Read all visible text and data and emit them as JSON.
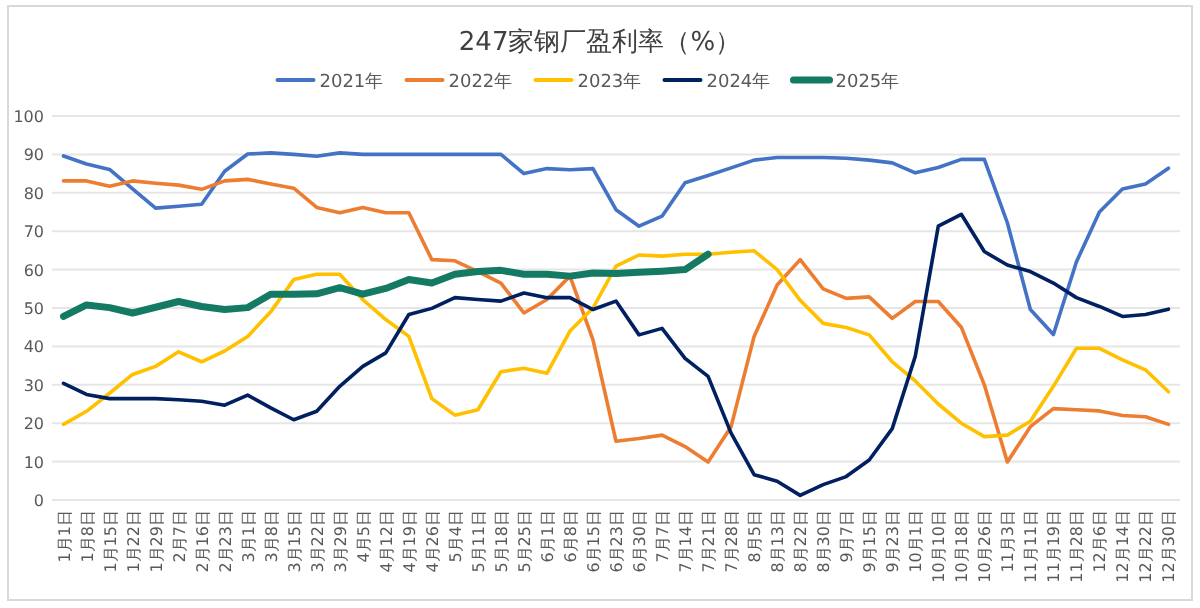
{
  "chart_data": {
    "type": "line",
    "title": "247家钢厂盈利率（%）",
    "categories": [
      "1月1日",
      "1月8日",
      "1月15日",
      "1月22日",
      "1月29日",
      "2月7日",
      "2月16日",
      "2月23日",
      "3月1日",
      "3月8日",
      "3月15日",
      "3月22日",
      "3月29日",
      "4月5日",
      "4月12日",
      "4月19日",
      "4月26日",
      "5月4日",
      "5月11日",
      "5月18日",
      "5月25日",
      "6月1日",
      "6月8日",
      "6月15日",
      "6月23日",
      "6月30日",
      "7月7日",
      "7月14日",
      "7月21日",
      "7月28日",
      "8月5日",
      "8月13日",
      "8月22日",
      "8月30日",
      "9月7日",
      "9月15日",
      "9月23日",
      "10月1日",
      "10月10日",
      "10月18日",
      "10月26日",
      "11月3日",
      "11月11日",
      "11月19日",
      "11月28日",
      "12月6日",
      "12月14日",
      "12月22日",
      "12月30日"
    ],
    "series": [
      {
        "name": "2021年",
        "color": "#4472c4",
        "values": [
          89.6,
          87.5,
          86.1,
          81,
          76,
          76.5,
          77,
          85.6,
          90.1,
          90.4,
          90,
          89.5,
          90.4,
          90,
          90,
          90,
          90,
          90,
          90,
          90,
          85,
          86.3,
          86,
          86.3,
          75.6,
          71.3,
          73.9,
          82.6,
          84.5,
          86.5,
          88.5,
          89.2,
          89.2,
          89.2,
          89,
          88.5,
          87.8,
          85.2,
          86.6,
          88.7,
          88.7,
          72.2,
          49.6,
          43.1,
          62,
          75,
          81,
          82.3,
          86.4
        ]
      },
      {
        "name": "2022年",
        "color": "#ed7d31",
        "values": [
          83.1,
          83.1,
          81.7,
          83.1,
          82.5,
          82,
          80.9,
          83.1,
          83.5,
          82.3,
          81.2,
          76.2,
          74.8,
          76.2,
          74.8,
          74.8,
          62.6,
          62.3,
          59.5,
          56.5,
          48.7,
          52.2,
          58.3,
          41.7,
          15.3,
          16,
          16.9,
          13.9,
          9.9,
          19.1,
          42.6,
          56,
          62.6,
          55,
          52.5,
          52.9,
          47.3,
          51.7,
          51.7,
          45,
          30,
          9.9,
          19.1,
          23.8,
          23.5,
          23.2,
          22,
          21.7,
          19.7
        ]
      },
      {
        "name": "2023年",
        "color": "#ffc000",
        "values": [
          19.7,
          23.1,
          27.8,
          32.7,
          34.8,
          38.6,
          36,
          38.8,
          42.6,
          49,
          57.4,
          58.8,
          58.8,
          52.2,
          47,
          42.6,
          26.4,
          22.1,
          23.5,
          33.4,
          34.3,
          33,
          44,
          50,
          60.9,
          63.8,
          63.5,
          64,
          64,
          64.5,
          64.9,
          60,
          52,
          46,
          44.9,
          43,
          36,
          31,
          25,
          20,
          16.5,
          16.9,
          20.5,
          29.6,
          39.5,
          39.5,
          36.5,
          33.9,
          28.2
        ]
      },
      {
        "name": "2024年",
        "color": "#002060",
        "values": [
          30.4,
          27.5,
          26.4,
          26.4,
          26.4,
          26.1,
          25.7,
          24.7,
          27.3,
          24,
          20.9,
          23.1,
          29.6,
          34.8,
          38.3,
          48.3,
          49.9,
          52.7,
          52.2,
          51.8,
          53.9,
          52.7,
          52.7,
          49.6,
          51.8,
          43,
          44.7,
          36.9,
          32.2,
          17.4,
          6.6,
          4.9,
          1.2,
          4,
          6.1,
          10.4,
          18.6,
          37.4,
          71.3,
          74.4,
          64.7,
          61.2,
          59.5,
          56.5,
          52.7,
          50.4,
          47.8,
          48.3,
          49.7
        ]
      },
      {
        "name": "2025年",
        "color": "#147a63",
        "values": [
          47.8,
          50.8,
          50.1,
          48.7,
          50.2,
          51.7,
          50.4,
          49.6,
          50.1,
          53.6,
          53.6,
          53.7,
          55.3,
          53.6,
          55.1,
          57.4,
          56.5,
          58.8,
          59.5,
          59.8,
          58.8,
          58.8,
          58.3,
          59.1,
          59,
          59.3,
          59.6,
          60,
          64,
          null,
          null,
          null,
          null,
          null,
          null,
          null,
          null,
          null,
          null,
          null,
          null,
          null,
          null,
          null,
          null,
          null,
          null,
          null,
          null
        ]
      }
    ],
    "ylim": [
      0,
      100
    ],
    "yticks": [
      0,
      10,
      20,
      30,
      40,
      50,
      60,
      70,
      80,
      90,
      100
    ],
    "grid": "y",
    "legend": "top"
  }
}
